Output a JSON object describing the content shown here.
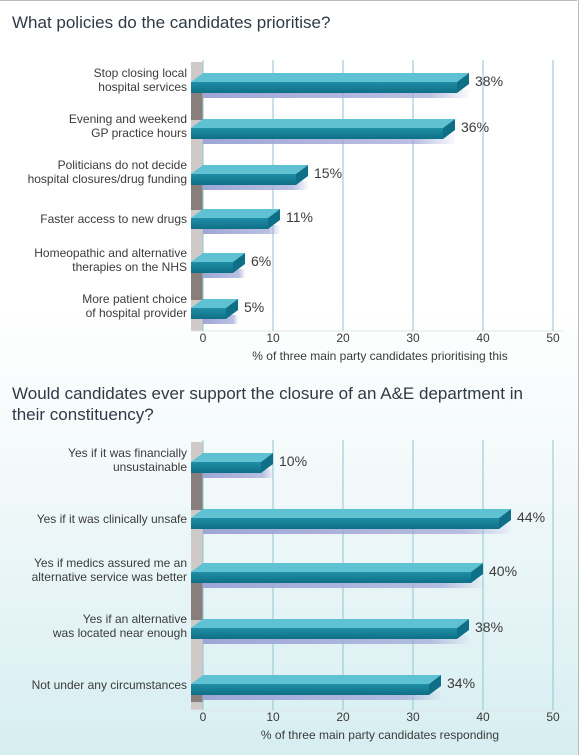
{
  "title1": "What policies do the candidates prioritise?",
  "title2": "Would candidates ever support the closure of an A&E department in their constituency?",
  "colors": {
    "bar_top": "#5fc2d2",
    "bar_front": "#1f8ea6",
    "bar_dark": "#0f6f86",
    "shadow": "#9ea6d6",
    "wall_dark": "#7f7673",
    "wall_light": "#cfcac8",
    "grid": "#8ec6d0"
  },
  "chart_data": [
    {
      "type": "bar",
      "orientation": "horizontal",
      "title": "What policies do the candidates prioritise?",
      "categories": [
        [
          "Stop closing local",
          "hospital services"
        ],
        [
          "Evening and weekend",
          "GP practice hours"
        ],
        [
          "Politicians do not decide",
          "hospital closures/drug funding"
        ],
        [
          "Faster access to new drugs"
        ],
        [
          "Homeopathic and alternative",
          "therapies on the NHS"
        ],
        [
          "More patient choice",
          "of hospital provider"
        ]
      ],
      "values": [
        38,
        36,
        15,
        11,
        6,
        5
      ],
      "value_labels": [
        "38%",
        "36%",
        "15%",
        "11%",
        "6%",
        "5%"
      ],
      "xlabel": "% of three main party candidates prioritising this",
      "xlim": [
        0,
        50
      ],
      "xticks": [
        "0",
        "10",
        "20",
        "30",
        "40",
        "50"
      ],
      "grid": true
    },
    {
      "type": "bar",
      "orientation": "horizontal",
      "title": "Would candidates ever support the closure of an A&E department in their constituency?",
      "categories": [
        [
          "Yes if it was financially",
          "unsustainable"
        ],
        [
          "Yes if it was clinically unsafe"
        ],
        [
          "Yes if medics assured me an",
          "alternative service was better"
        ],
        [
          "Yes if an alternative",
          "was located near enough"
        ],
        [
          "Not under any circumstances"
        ]
      ],
      "values": [
        10,
        44,
        40,
        38,
        34
      ],
      "value_labels": [
        "10%",
        "44%",
        "40%",
        "38%",
        "34%"
      ],
      "xlabel": "% of three main party candidates responding",
      "xlim": [
        0,
        50
      ],
      "xticks": [
        "0",
        "10",
        "20",
        "30",
        "40",
        "50"
      ],
      "grid": true
    }
  ]
}
